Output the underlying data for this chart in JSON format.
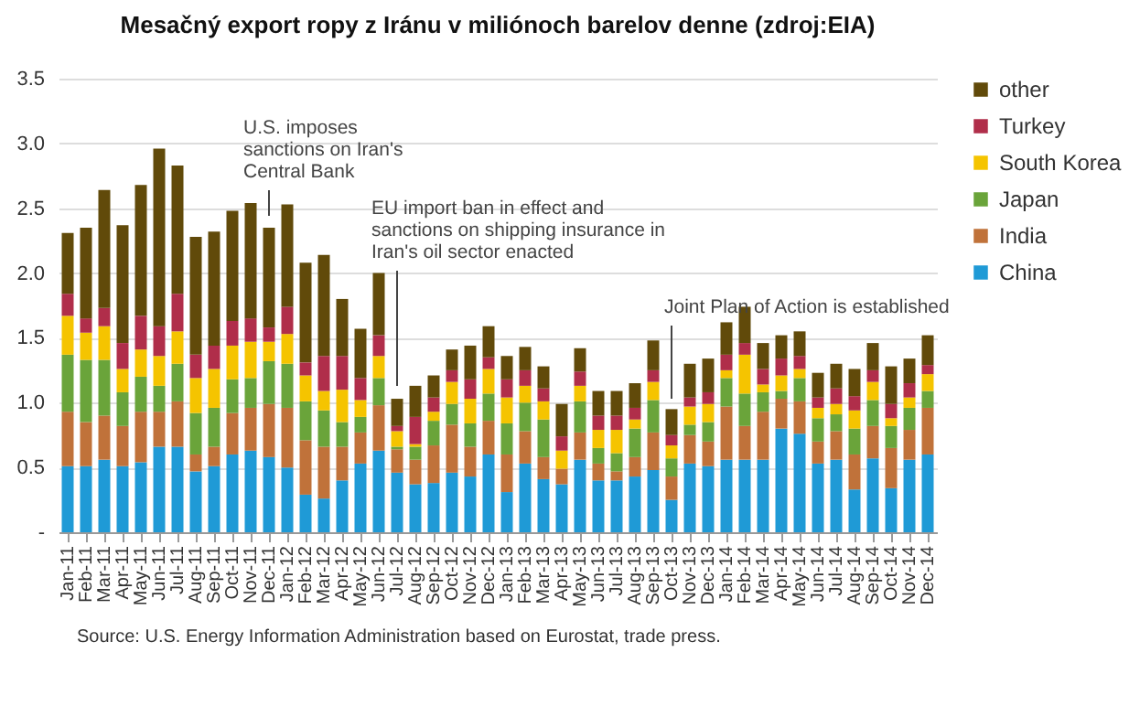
{
  "chart_data": {
    "type": "bar",
    "stacked": true,
    "title": "Mesačný export ropy z Iránu v miliónoch barelov denne (zdroj:EIA)",
    "categories": [
      "Jan-11",
      "Feb-11",
      "Mar-11",
      "Apr-11",
      "May-11",
      "Jun-11",
      "Jul-11",
      "Aug-11",
      "Sep-11",
      "Oct-11",
      "Nov-11",
      "Dec-11",
      "Jan-12",
      "Feb-12",
      "Mar-12",
      "Apr-12",
      "May-12",
      "Jun-12",
      "Jul-12",
      "Aug-12",
      "Sep-12",
      "Oct-12",
      "Nov-12",
      "Dec-12",
      "Jan-13",
      "Feb-13",
      "Mar-13",
      "Apr-13",
      "May-13",
      "Jun-13",
      "Jul-13",
      "Aug-13",
      "Sep-13",
      "Oct-13",
      "Nov-13",
      "Dec-13",
      "Jan-14",
      "Feb-14",
      "Mar-14",
      "Apr-14",
      "May-14",
      "Jun-14",
      "Jul-14",
      "Aug-14",
      "Sep-14",
      "Oct-14",
      "Nov-14",
      "Dec-14"
    ],
    "series": [
      {
        "name": "China",
        "color": "#1f9ad6",
        "values": [
          0.51,
          0.51,
          0.56,
          0.51,
          0.54,
          0.66,
          0.66,
          0.47,
          0.51,
          0.6,
          0.63,
          0.58,
          0.5,
          0.29,
          0.26,
          0.4,
          0.53,
          0.63,
          0.46,
          0.37,
          0.38,
          0.46,
          0.43,
          0.6,
          0.31,
          0.53,
          0.41,
          0.37,
          0.56,
          0.4,
          0.4,
          0.43,
          0.48,
          0.25,
          0.53,
          0.51,
          0.56,
          0.56,
          0.56,
          0.8,
          0.76,
          0.53,
          0.56,
          0.33,
          0.57,
          0.34,
          0.56,
          0.6
        ]
      },
      {
        "name": "India",
        "color": "#c0723a",
        "values": [
          0.42,
          0.34,
          0.34,
          0.31,
          0.39,
          0.27,
          0.35,
          0.13,
          0.15,
          0.32,
          0.33,
          0.41,
          0.46,
          0.42,
          0.4,
          0.26,
          0.24,
          0.35,
          0.18,
          0.19,
          0.29,
          0.37,
          0.23,
          0.26,
          0.29,
          0.25,
          0.17,
          0.12,
          0.21,
          0.13,
          0.07,
          0.15,
          0.29,
          0.18,
          0.22,
          0.19,
          0.41,
          0.26,
          0.37,
          0.23,
          0.25,
          0.17,
          0.22,
          0.27,
          0.25,
          0.31,
          0.23,
          0.36
        ]
      },
      {
        "name": "Japan",
        "color": "#6aa43a",
        "values": [
          0.44,
          0.48,
          0.43,
          0.26,
          0.27,
          0.2,
          0.29,
          0.32,
          0.3,
          0.26,
          0.23,
          0.33,
          0.34,
          0.3,
          0.28,
          0.19,
          0.12,
          0.21,
          0.02,
          0.1,
          0.19,
          0.16,
          0.18,
          0.21,
          0.24,
          0.22,
          0.29,
          0,
          0.24,
          0.12,
          0.14,
          0.22,
          0.25,
          0.14,
          0.08,
          0.15,
          0.22,
          0.25,
          0.15,
          0.06,
          0.18,
          0.18,
          0.13,
          0.2,
          0.2,
          0.17,
          0.17,
          0.13
        ]
      },
      {
        "name": "South Korea",
        "color": "#f5c400",
        "values": [
          0.3,
          0.21,
          0.26,
          0.18,
          0.21,
          0.23,
          0.25,
          0.27,
          0.3,
          0.26,
          0.28,
          0.15,
          0.23,
          0.2,
          0.15,
          0.25,
          0.13,
          0.17,
          0.12,
          0.02,
          0.07,
          0.17,
          0.19,
          0.19,
          0.2,
          0.13,
          0.14,
          0.14,
          0.12,
          0.14,
          0.18,
          0.07,
          0.14,
          0.1,
          0.14,
          0.14,
          0.06,
          0.3,
          0.06,
          0.12,
          0.07,
          0.08,
          0.08,
          0.14,
          0.14,
          0.06,
          0.08,
          0.13
        ]
      },
      {
        "name": "Turkey",
        "color": "#b02e4a",
        "values": [
          0.17,
          0.11,
          0.14,
          0.2,
          0.26,
          0.23,
          0.29,
          0.18,
          0.18,
          0.19,
          0.18,
          0.11,
          0.21,
          0.1,
          0.27,
          0.26,
          0.17,
          0.16,
          0.04,
          0.21,
          0.11,
          0.09,
          0.15,
          0.09,
          0.14,
          0.12,
          0.1,
          0.11,
          0.11,
          0.11,
          0.11,
          0.09,
          0.09,
          0.08,
          0.07,
          0.09,
          0.12,
          0.09,
          0.12,
          0.13,
          0.1,
          0.08,
          0.12,
          0.11,
          0.09,
          0.11,
          0.11,
          0.07
        ]
      },
      {
        "name": "other",
        "color": "#614a0a",
        "values": [
          0.47,
          0.7,
          0.91,
          0.91,
          1.01,
          1.37,
          0.99,
          0.91,
          0.88,
          0.85,
          0.89,
          0.77,
          0.79,
          0.77,
          0.78,
          0.44,
          0.38,
          0.48,
          0.21,
          0.24,
          0.17,
          0.16,
          0.26,
          0.24,
          0.18,
          0.18,
          0.17,
          0.25,
          0.18,
          0.19,
          0.19,
          0.19,
          0.23,
          0.2,
          0.26,
          0.26,
          0.25,
          0.28,
          0.2,
          0.18,
          0.19,
          0.19,
          0.19,
          0.21,
          0.21,
          0.29,
          0.19,
          0.23
        ]
      }
    ],
    "ylim": [
      0,
      3.5
    ],
    "yticks": [
      {
        "value": 0,
        "label": "-"
      },
      0.5,
      {
        "value": 1,
        "label": "1.0"
      },
      1.5,
      {
        "value": 2,
        "label": "2.0"
      },
      2.5,
      {
        "value": 3,
        "label": "3.0"
      },
      3.5
    ],
    "grid": "y",
    "legend": "right",
    "annotations": [
      "U.S. imposes\nsanctions on Iran's\nCentral Bank",
      "EU import ban in effect and\nsanctions on shipping insurance in\nIran's oil sector enacted",
      "Joint Plan of Action is established",
      "Source: U.S. Energy Information Administration based on Eurostat, trade press."
    ]
  }
}
